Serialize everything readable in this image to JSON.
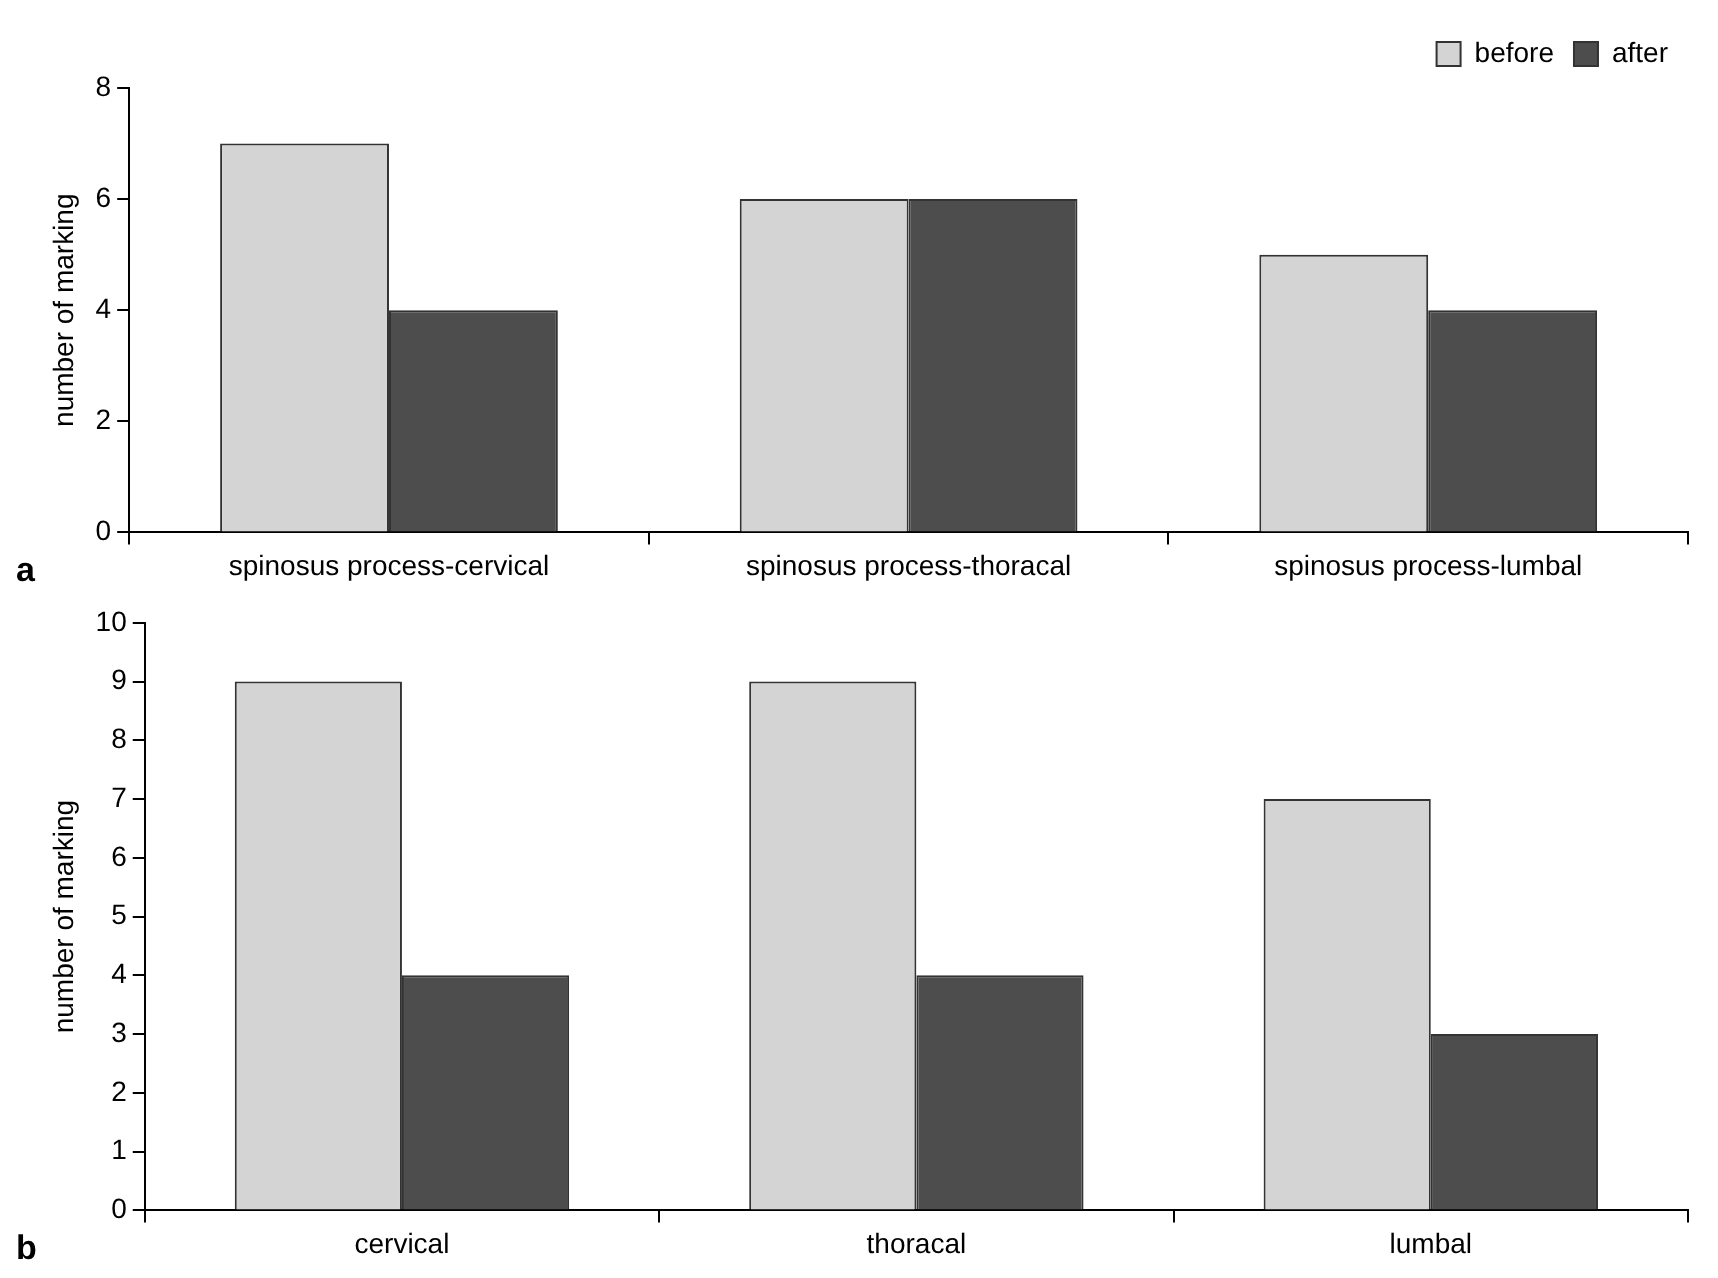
{
  "chart_data": [
    {
      "type": "bar",
      "ylabel": "number of marking",
      "categories": [
        "spinosus process-cervical",
        "spinosus process-thoracal",
        "spinosus process-lumbal"
      ],
      "series": [
        {
          "name": "before",
          "color": "#d4d4d4",
          "values": [
            7,
            6,
            5
          ]
        },
        {
          "name": "after",
          "color": "#4d4d4d",
          "values": [
            4,
            6,
            4
          ]
        }
      ],
      "ylim": [
        0,
        8
      ],
      "yticks": [
        0,
        2,
        4,
        6,
        8
      ],
      "grid": false,
      "legend": "top right",
      "annotations": [
        "a"
      ]
    },
    {
      "type": "bar",
      "ylabel": "number of marking",
      "categories": [
        "cervical",
        "thoracal",
        "lumbal"
      ],
      "series": [
        {
          "color": "#d4d4d4",
          "values": [
            9,
            9,
            7
          ]
        },
        {
          "color": "#4d4d4d",
          "values": [
            4,
            4,
            3
          ]
        }
      ],
      "ylim": [
        0,
        10
      ],
      "yticks": [
        0,
        1,
        2,
        3,
        4,
        5,
        6,
        7,
        8,
        9,
        10
      ],
      "grid": false,
      "annotations": [
        "b"
      ]
    }
  ]
}
